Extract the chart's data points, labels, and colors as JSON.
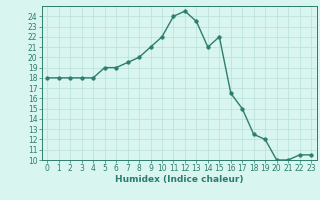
{
  "x": [
    0,
    1,
    2,
    3,
    4,
    5,
    6,
    7,
    8,
    9,
    10,
    11,
    12,
    13,
    14,
    15,
    16,
    17,
    18,
    19,
    20,
    21,
    22,
    23
  ],
  "y": [
    18,
    18,
    18,
    18,
    18,
    19,
    19,
    19.5,
    20,
    21,
    22,
    24,
    24.5,
    23.5,
    21,
    22,
    16.5,
    15,
    12.5,
    12,
    10,
    10,
    10.5,
    10.5
  ],
  "line_color": "#2d7d6e",
  "bg_color": "#d9f5f0",
  "grid_color": "#b8e0d8",
  "xlabel": "Humidex (Indice chaleur)",
  "ylim": [
    10,
    25
  ],
  "xlim": [
    -0.5,
    23.5
  ],
  "yticks": [
    10,
    11,
    12,
    13,
    14,
    15,
    16,
    17,
    18,
    19,
    20,
    21,
    22,
    23,
    24
  ],
  "xticks": [
    0,
    1,
    2,
    3,
    4,
    5,
    6,
    7,
    8,
    9,
    10,
    11,
    12,
    13,
    14,
    15,
    16,
    17,
    18,
    19,
    20,
    21,
    22,
    23
  ],
  "axis_color": "#2d7d6e",
  "marker_size": 2.5,
  "line_width": 1.0,
  "tick_fontsize": 5.5,
  "xlabel_fontsize": 6.5
}
